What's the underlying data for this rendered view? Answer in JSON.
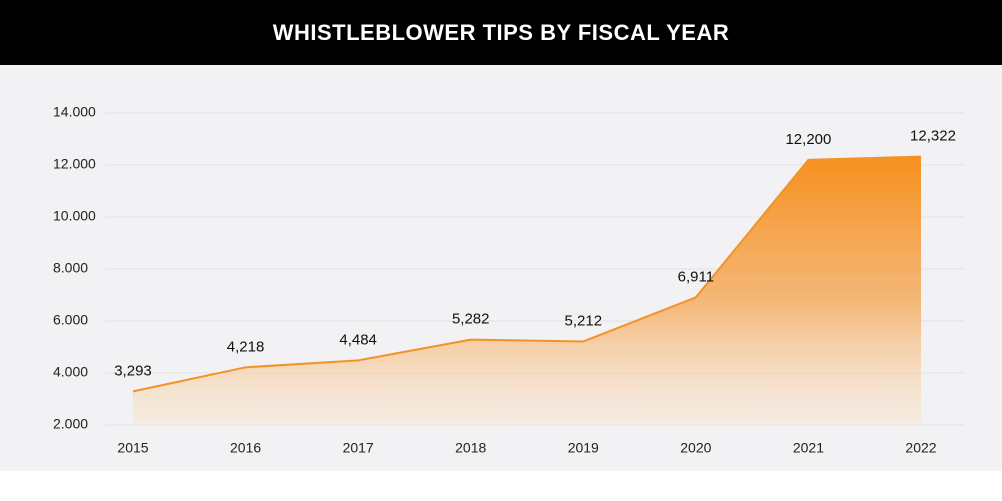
{
  "chart_data": {
    "type": "area",
    "title": "WHISTLEBLOWER TIPS BY FISCAL YEAR",
    "categories": [
      "2015",
      "2016",
      "2017",
      "2018",
      "2019",
      "2020",
      "2021",
      "2022"
    ],
    "values": [
      3293,
      4218,
      4484,
      5282,
      5212,
      6911,
      12200,
      12322
    ],
    "value_labels": [
      "3,293",
      "4,218",
      "4,484",
      "5,282",
      "5,212",
      "6,911",
      "12,200",
      "12,322"
    ],
    "color": "#f39327",
    "ylim": [
      2000,
      14000
    ],
    "yticks": [
      {
        "value": 2000,
        "label": "2.000"
      },
      {
        "value": 4000,
        "label": "4.000"
      },
      {
        "value": 6000,
        "label": "6.000"
      },
      {
        "value": 8000,
        "label": "8.000"
      },
      {
        "value": 10000,
        "label": "10.000"
      },
      {
        "value": 12000,
        "label": "12.000"
      },
      {
        "value": 14000,
        "label": "14.000"
      }
    ],
    "grid": true
  }
}
